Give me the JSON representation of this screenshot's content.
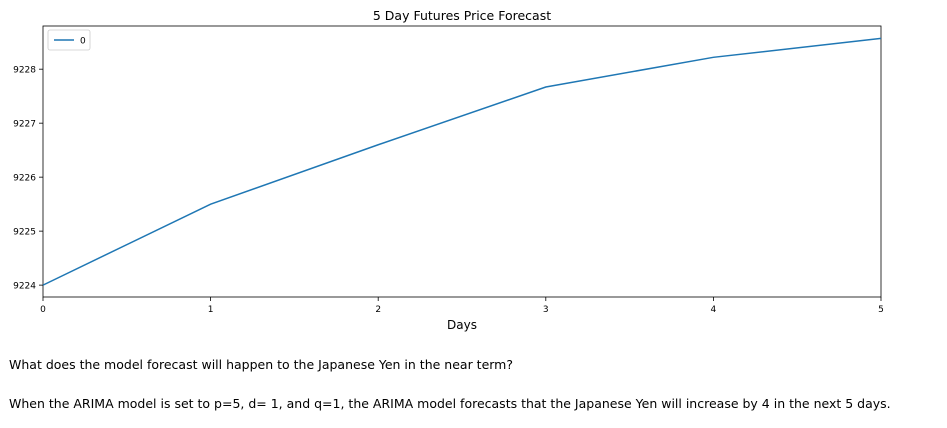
{
  "chart_data": {
    "type": "line",
    "title": "5 Day Futures Price Forecast",
    "xlabel": "Days",
    "ylabel": "",
    "x": [
      0,
      1,
      2,
      3,
      4,
      5
    ],
    "series": [
      {
        "name": "0",
        "color": "#1f77b4",
        "values": [
          9224.0,
          9225.5,
          9226.6,
          9227.67,
          9228.22,
          9228.57
        ]
      }
    ],
    "xlim": [
      0,
      5
    ],
    "ylim": [
      9223.78,
      9228.8
    ],
    "xticks": [
      0,
      1,
      2,
      3,
      4,
      5
    ],
    "yticks": [
      9224,
      9225,
      9226,
      9227,
      9228
    ],
    "grid": false,
    "legend": "top-left"
  },
  "text": {
    "question": "What does the model forecast will happen to the Japanese Yen in the near term?",
    "answer": "When the ARIMA model is set to p=5, d= 1, and q=1, the ARIMA model forecasts that the Japanese Yen will increase by 4 in the next 5 days."
  }
}
